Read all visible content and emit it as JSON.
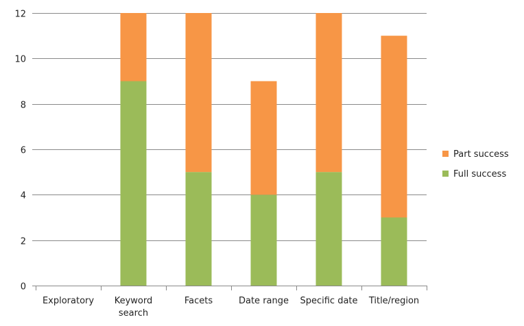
{
  "chart_data": {
    "type": "bar",
    "stacked": true,
    "categories": [
      "Exploratory",
      "Keyword search",
      "Facets",
      "Date range",
      "Specific date",
      "Title/region"
    ],
    "category_label_lines": [
      [
        "Exploratory"
      ],
      [
        "Keyword",
        "search"
      ],
      [
        "Facets"
      ],
      [
        "Date range"
      ],
      [
        "Specific date"
      ],
      [
        "Title/region"
      ]
    ],
    "series": [
      {
        "name": "Full success",
        "color": "#9bbb59",
        "values": [
          0,
          9,
          5,
          4,
          5,
          3
        ]
      },
      {
        "name": "Part success",
        "color": "#f79646",
        "values": [
          0,
          3,
          7,
          5,
          7,
          8
        ]
      }
    ],
    "ylim": [
      0,
      12
    ],
    "yticks": [
      0,
      2,
      4,
      6,
      8,
      10,
      12
    ],
    "grid": true,
    "legend": {
      "position": "right",
      "order": [
        "Part success",
        "Full success"
      ]
    },
    "title": "",
    "xlabel": "",
    "ylabel": ""
  }
}
